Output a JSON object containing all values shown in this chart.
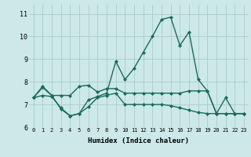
{
  "title": "",
  "xlabel": "Humidex (Indice chaleur)",
  "xlim": [
    -0.5,
    23.5
  ],
  "ylim": [
    6,
    11.4
  ],
  "yticks": [
    6,
    7,
    8,
    9,
    10,
    11
  ],
  "xticks": [
    0,
    1,
    2,
    3,
    4,
    5,
    6,
    7,
    8,
    9,
    10,
    11,
    12,
    13,
    14,
    15,
    16,
    17,
    18,
    19,
    20,
    21,
    22,
    23
  ],
  "background_color": "#cce8e8",
  "plot_bg_color": "#cce8e8",
  "grid_color": "#aacccc",
  "line_color": "#1a6b5a",
  "line_width": 1.0,
  "marker": "D",
  "marker_size": 2.0,
  "series": [
    [
      7.3,
      7.8,
      7.4,
      6.8,
      6.5,
      6.6,
      7.2,
      7.35,
      7.5,
      8.9,
      8.1,
      8.6,
      9.3,
      10.0,
      10.75,
      10.85,
      9.6,
      10.2,
      8.1,
      7.6,
      6.6,
      7.3,
      6.6,
      6.6
    ],
    [
      7.3,
      7.75,
      7.4,
      7.4,
      7.4,
      7.8,
      7.85,
      7.55,
      7.7,
      7.7,
      7.5,
      7.5,
      7.5,
      7.5,
      7.5,
      7.5,
      7.5,
      7.6,
      7.6,
      7.6,
      6.6,
      6.6,
      6.6,
      6.6
    ],
    [
      7.3,
      7.4,
      7.35,
      6.85,
      6.5,
      6.6,
      6.9,
      7.3,
      7.4,
      7.5,
      7.0,
      7.0,
      7.0,
      7.0,
      7.0,
      6.95,
      6.85,
      6.75,
      6.65,
      6.6,
      6.6,
      6.6,
      6.6,
      6.6
    ]
  ]
}
